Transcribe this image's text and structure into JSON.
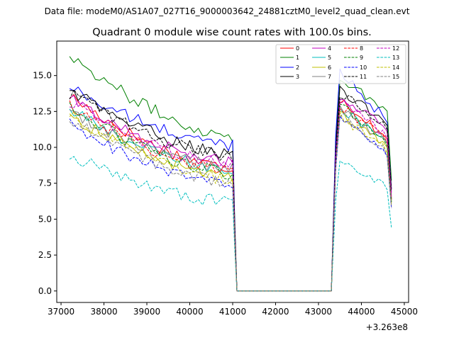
{
  "chart_data": {
    "type": "line",
    "suptitle": "Data file: modeM0/AS1A07_027T16_9000003642_24881cztM0_level2_quad_clean.evt",
    "title": "Quadrant 0 module wise count rates with 100.0s bins.",
    "xlabel": "",
    "ylabel": "",
    "offset_label": "+3.263e8",
    "xlim": [
      36900,
      45100
    ],
    "ylim": [
      -0.8,
      17.4
    ],
    "xticks": [
      37000,
      38000,
      39000,
      40000,
      41000,
      42000,
      43000,
      44000,
      45000
    ],
    "yticks": [
      0.0,
      2.5,
      5.0,
      7.5,
      10.0,
      12.5,
      15.0
    ],
    "legend_position": "top-right",
    "legend_columns": 4,
    "segments": [
      {
        "x_start": 37200,
        "x_end": 41000,
        "decay": 1
      },
      {
        "x_start": 43500,
        "x_end": 44700,
        "decay": 2
      }
    ],
    "gap_x": [
      41100,
      43300
    ],
    "series": [
      {
        "name": "0",
        "color": "#ff0000",
        "dash": "solid",
        "start1": 13.6,
        "end1": 8.6,
        "start2": 13.4,
        "end2": 10.4
      },
      {
        "name": "1",
        "color": "#008000",
        "dash": "solid",
        "start1": 16.5,
        "end1": 10.8,
        "start2": 14.8,
        "end2": 12.4
      },
      {
        "name": "2",
        "color": "#0000ff",
        "dash": "solid",
        "start1": 14.2,
        "end1": 10.2,
        "start2": 15.4,
        "end2": 11.5
      },
      {
        "name": "3",
        "color": "#000000",
        "dash": "solid",
        "start1": 14.0,
        "end1": 9.6,
        "start2": 14.0,
        "end2": 11.4
      },
      {
        "name": "4",
        "color": "#bf00bf",
        "dash": "solid",
        "start1": 13.4,
        "end1": 9.0,
        "start2": 13.6,
        "end2": 11.0
      },
      {
        "name": "5",
        "color": "#00bfbf",
        "dash": "solid",
        "start1": 12.6,
        "end1": 8.4,
        "start2": 12.8,
        "end2": 10.2
      },
      {
        "name": "6",
        "color": "#bfbf00",
        "dash": "solid",
        "start1": 12.2,
        "end1": 8.0,
        "start2": 12.4,
        "end2": 9.9
      },
      {
        "name": "7",
        "color": "#808080",
        "dash": "solid",
        "start1": 12.4,
        "end1": 8.6,
        "start2": 12.6,
        "end2": 10.2
      },
      {
        "name": "8",
        "color": "#ff0000",
        "dash": "dashed",
        "start1": 13.0,
        "end1": 8.4,
        "start2": 12.9,
        "end2": 10.3
      },
      {
        "name": "9",
        "color": "#008000",
        "dash": "dashed",
        "start1": 12.8,
        "end1": 8.2,
        "start2": 13.0,
        "end2": 10.0
      },
      {
        "name": "10",
        "color": "#0000ff",
        "dash": "dashed",
        "start1": 11.6,
        "end1": 7.4,
        "start2": 12.0,
        "end2": 9.3
      },
      {
        "name": "11",
        "color": "#000000",
        "dash": "dashed",
        "start1": 13.8,
        "end1": 9.4,
        "start2": 13.8,
        "end2": 11.2
      },
      {
        "name": "12",
        "color": "#bf00bf",
        "dash": "dashed",
        "start1": 13.2,
        "end1": 8.8,
        "start2": 13.2,
        "end2": 10.6
      },
      {
        "name": "13",
        "color": "#00bfbf",
        "dash": "dashed",
        "start1": 9.5,
        "end1": 6.2,
        "start2": 9.0,
        "end2": 7.1
      },
      {
        "name": "14",
        "color": "#bfbf00",
        "dash": "dashed",
        "start1": 12.4,
        "end1": 7.8,
        "start2": 12.2,
        "end2": 9.6
      },
      {
        "name": "15",
        "color": "#808080",
        "dash": "dashed",
        "start1": 12.0,
        "end1": 7.6,
        "start2": 12.4,
        "end2": 9.4
      }
    ]
  }
}
